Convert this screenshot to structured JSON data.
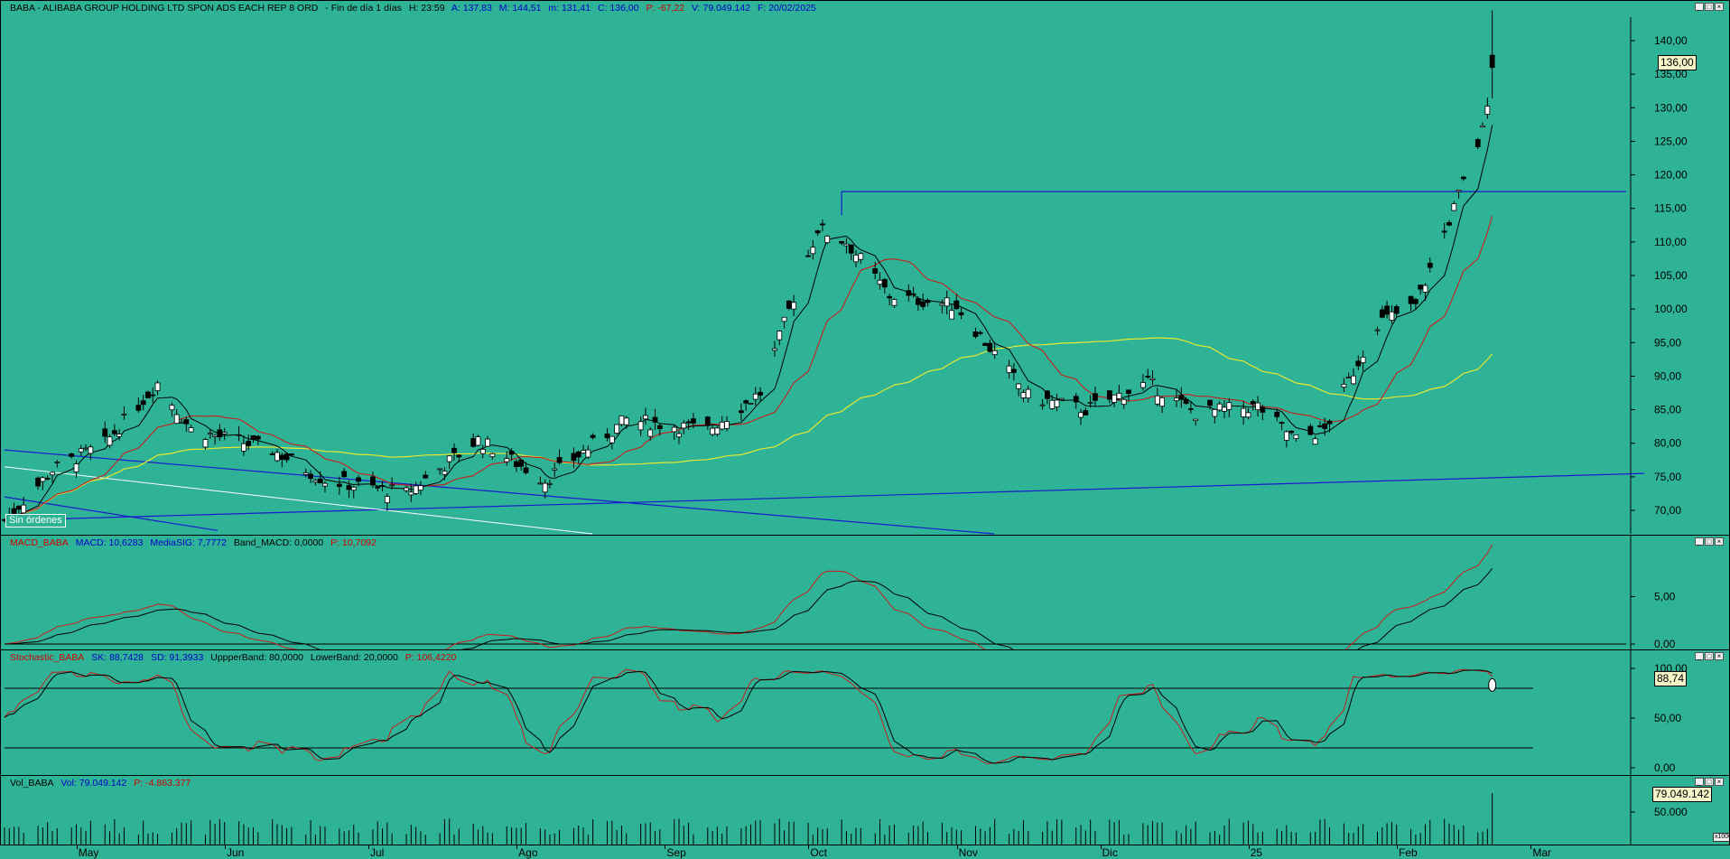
{
  "price_panel": {
    "title": "BABA - ALIBABA GROUP HOLDING LTD SPON ADS EACH REP 8 ORD",
    "subtitle": "- Fin de día 1 días",
    "stats": [
      {
        "label": "H: 23:59",
        "color": "black"
      },
      {
        "label": "A: 137,83",
        "color": "blue"
      },
      {
        "label": "M: 144,51",
        "color": "blue"
      },
      {
        "label": "m: 131,41",
        "color": "blue"
      },
      {
        "label": "C: 136,00",
        "color": "blue"
      },
      {
        "label": "P: -67,22",
        "color": "red"
      },
      {
        "label": "V: 79.049.142",
        "color": "blue"
      },
      {
        "label": "F: 20/02/2025",
        "color": "blue"
      }
    ],
    "current_price": "136,00",
    "orders_label": "Sin órdenes",
    "y_ticks": [
      "140,00",
      "135,00",
      "130,00",
      "125,00",
      "120,00",
      "115,00",
      "110,00",
      "105,00",
      "100,00",
      "95,00",
      "90,00",
      "85,00",
      "80,00",
      "75,00",
      "70,00"
    ]
  },
  "macd_panel": {
    "labels": [
      {
        "text": "MACD_BABA",
        "color": "red"
      },
      {
        "text": "MACD: 10,6283",
        "color": "blue"
      },
      {
        "text": "MediaSIG: 7,7772",
        "color": "blue"
      },
      {
        "text": "Band_MACD: 0,0000",
        "color": "black"
      },
      {
        "text": "P: 10,7092",
        "color": "red"
      }
    ],
    "y_ticks": [
      "5,00",
      "0,00"
    ]
  },
  "stoch_panel": {
    "labels": [
      {
        "text": "Stochastic_BABA",
        "color": "red"
      },
      {
        "text": "SK: 88,7428",
        "color": "blue"
      },
      {
        "text": "SD: 91,3933",
        "color": "blue"
      },
      {
        "text": "UppperBand: 80,0000",
        "color": "black"
      },
      {
        "text": "LowerBand: 20,0000",
        "color": "black"
      },
      {
        "text": "P: 106,4220",
        "color": "red"
      }
    ],
    "y_ticks": [
      "100,00",
      "50,00",
      "0,00"
    ],
    "current_value": "88,74"
  },
  "volume_panel": {
    "labels": [
      {
        "text": "Vol_BABA",
        "color": "black"
      },
      {
        "text": "Vol: 79.049.142",
        "color": "blue"
      },
      {
        "text": "P: -4.863.377",
        "color": "red"
      }
    ],
    "y_ticks": [
      "50.000"
    ],
    "current_value": "79.049.142",
    "unit": "x1000"
  },
  "months": [
    "May",
    "Jun",
    "Jul",
    "Ago",
    "Sep",
    "Oct",
    "Nov",
    "Dic",
    "25",
    "Feb",
    "Mar"
  ],
  "colors": {
    "background": "#2fb396",
    "candle": "#000000",
    "ma_short": "#000000",
    "ma_mid": "#c81e1e",
    "ma_long": "#e8e830",
    "trendline": "#1a1acc",
    "macd": "#c81e1e",
    "signal": "#000000"
  },
  "chart_data": {
    "type": "candlestick",
    "x_range": [
      "2024-04-15",
      "2025-03-20"
    ],
    "ylim": [
      66.5,
      143.5
    ],
    "anchors": [
      {
        "date": "2024-04-15",
        "close": 68.5
      },
      {
        "date": "2024-04-25",
        "close": 76.0
      },
      {
        "date": "2024-05-06",
        "close": 80.0
      },
      {
        "date": "2024-05-17",
        "close": 89.0
      },
      {
        "date": "2024-05-24",
        "close": 82.0
      },
      {
        "date": "2024-06-10",
        "close": 79.0
      },
      {
        "date": "2024-06-21",
        "close": 74.5
      },
      {
        "date": "2024-07-08",
        "close": 72.5
      },
      {
        "date": "2024-07-23",
        "close": 80.5
      },
      {
        "date": "2024-08-06",
        "close": 74.5
      },
      {
        "date": "2024-08-23",
        "close": 83.5
      },
      {
        "date": "2024-09-09",
        "close": 82.0
      },
      {
        "date": "2024-09-20",
        "close": 87.5
      },
      {
        "date": "2024-10-02",
        "close": 112.0
      },
      {
        "date": "2024-10-08",
        "close": 110.0
      },
      {
        "date": "2024-10-17",
        "close": 102.0
      },
      {
        "date": "2024-10-31",
        "close": 100.5
      },
      {
        "date": "2024-11-15",
        "close": 87.0
      },
      {
        "date": "2024-11-27",
        "close": 85.0
      },
      {
        "date": "2024-12-10",
        "close": 89.0
      },
      {
        "date": "2024-12-20",
        "close": 84.5
      },
      {
        "date": "2025-01-02",
        "close": 85.5
      },
      {
        "date": "2025-01-10",
        "close": 80.5
      },
      {
        "date": "2025-01-16",
        "close": 82.0
      },
      {
        "date": "2025-01-27",
        "close": 98.0
      },
      {
        "date": "2025-02-04",
        "close": 100.5
      },
      {
        "date": "2025-02-12",
        "close": 115.0
      },
      {
        "date": "2025-02-18",
        "close": 126.5
      },
      {
        "date": "2025-02-20",
        "close": 136.0
      }
    ],
    "last_candle": {
      "date": "2025-02-20",
      "open": 137.83,
      "high": 144.51,
      "low": 131.41,
      "close": 136.0,
      "volume": 79049142
    },
    "macd": {
      "MACD": 10.6283,
      "MediaSIG": 7.7772,
      "Band_MACD": 0.0
    },
    "stochastic": {
      "SK": 88.7428,
      "SD": 91.3933,
      "UppperBand": 80.0,
      "LowerBand": 20.0
    }
  }
}
